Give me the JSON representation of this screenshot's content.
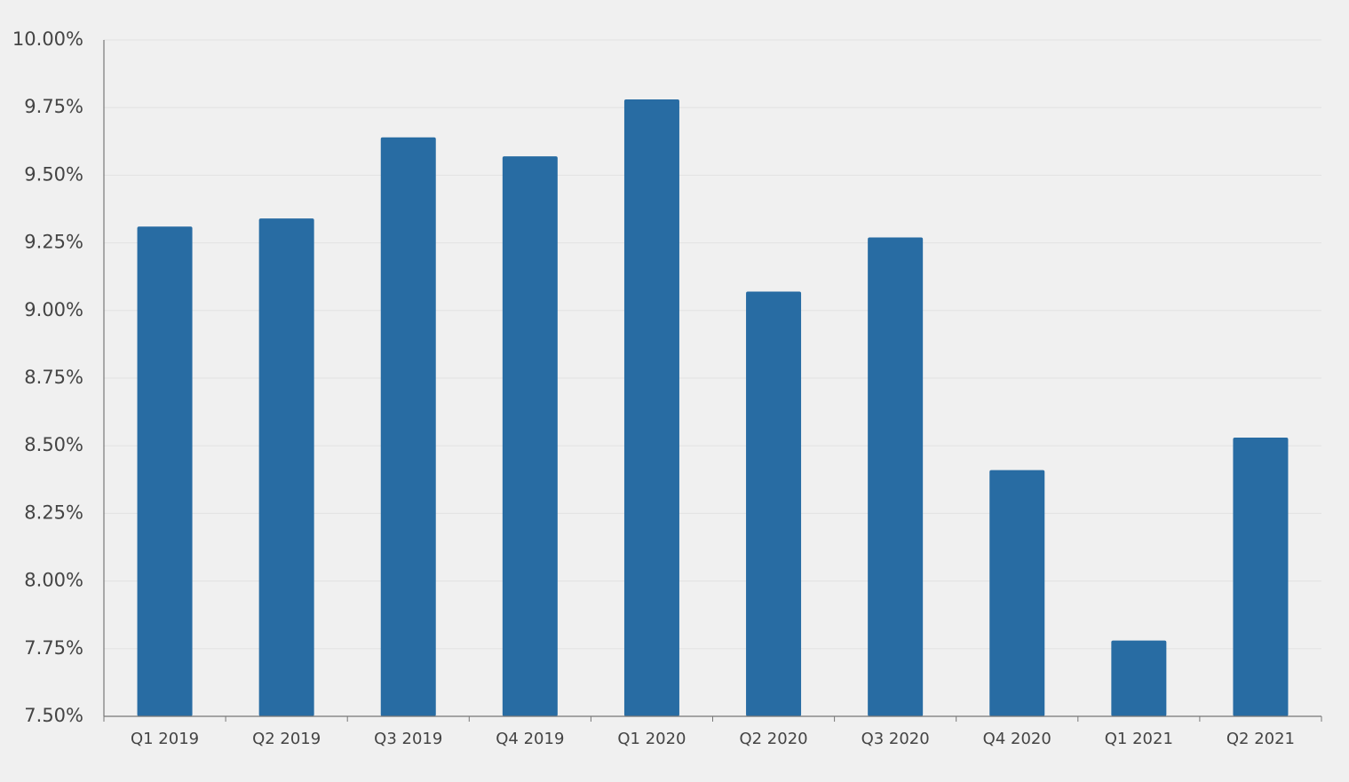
{
  "chart_data": {
    "type": "bar",
    "categories": [
      "Q1 2019",
      "Q2 2019",
      "Q3 2019",
      "Q4 2019",
      "Q1 2020",
      "Q2 2020",
      "Q3 2020",
      "Q4 2020",
      "Q1 2021",
      "Q2 2021"
    ],
    "values": [
      9.31,
      9.34,
      9.64,
      9.57,
      9.78,
      9.07,
      9.27,
      8.41,
      7.78,
      8.53
    ],
    "color": "#286ca3",
    "ylim": [
      7.5,
      10
    ],
    "yticks": [
      {
        "value": 7.5,
        "label": "7.50%"
      },
      {
        "value": 7.75,
        "label": "7.75%"
      },
      {
        "value": 8,
        "label": "8.00%"
      },
      {
        "value": 8.25,
        "label": "8.25%"
      },
      {
        "value": 8.5,
        "label": "8.50%"
      },
      {
        "value": 8.75,
        "label": "8.75%"
      },
      {
        "value": 9,
        "label": "9.00%"
      },
      {
        "value": 9.25,
        "label": "9.25%"
      },
      {
        "value": 9.5,
        "label": "9.50%"
      },
      {
        "value": 9.75,
        "label": "9.75%"
      },
      {
        "value": 10,
        "label": "10.00%"
      }
    ],
    "grid": true
  }
}
